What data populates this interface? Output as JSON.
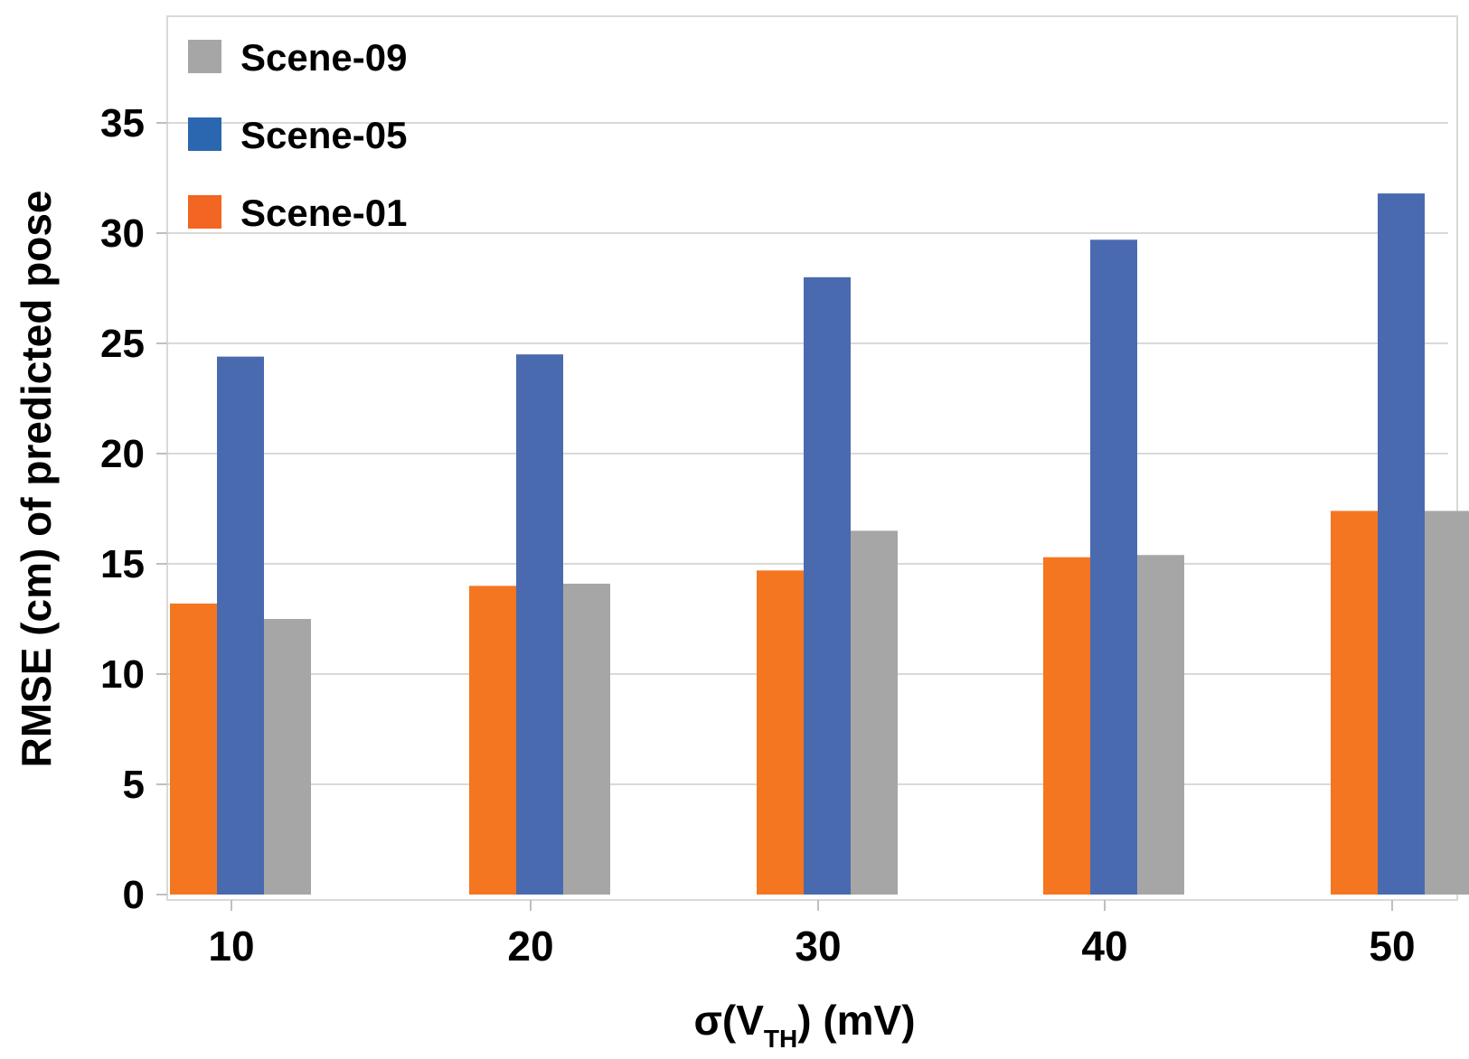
{
  "chart_data": {
    "type": "bar",
    "title": "",
    "xlabel": "σ(V_TH) (mV)",
    "xlabel_main": "σ(V",
    "xlabel_sub": "TH",
    "xlabel_tail": ") (mV)",
    "ylabel": "RMSE (cm) of predicted pose",
    "categories": [
      "10",
      "20",
      "30",
      "40",
      "50"
    ],
    "ylim": [
      0,
      35
    ],
    "yticks": [
      "0",
      "5",
      "10",
      "15",
      "20",
      "25",
      "30",
      "35"
    ],
    "grid": true,
    "legend_position": "top-left",
    "series": [
      {
        "name": "Scene-01",
        "color": "#F47621",
        "legend_color": "#F26522",
        "values": [
          13.2,
          14.0,
          14.7,
          15.3,
          17.4
        ]
      },
      {
        "name": "Scene-05",
        "color": "#4A6AB0",
        "legend_color": "#2B67B0",
        "values": [
          24.4,
          24.5,
          28.0,
          29.7,
          31.8
        ]
      },
      {
        "name": "Scene-09",
        "color": "#A6A6A6",
        "legend_color": "#A6A6A6",
        "values": [
          12.5,
          14.1,
          16.5,
          15.4,
          17.4
        ]
      }
    ],
    "legend_order": [
      "Scene-09",
      "Scene-05",
      "Scene-01"
    ]
  }
}
